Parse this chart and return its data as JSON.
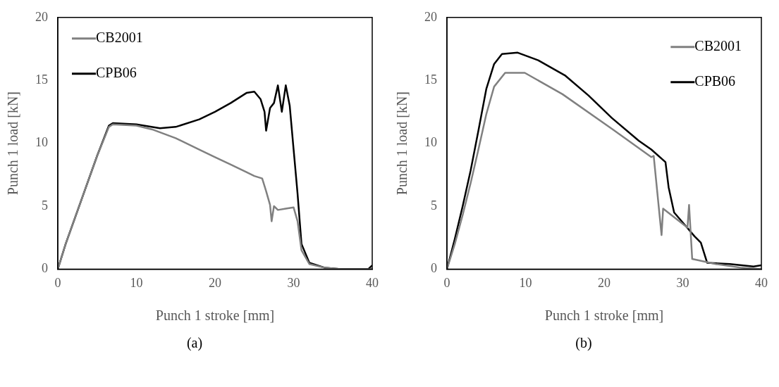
{
  "chart_data": [
    {
      "type": "line",
      "xlabel": "Punch 1 stroke [mm]",
      "ylabel": "Punch 1 load [kN]",
      "xlim": [
        0,
        40
      ],
      "xticks": [
        0,
        10,
        20,
        30,
        40
      ],
      "ylim": [
        0,
        20
      ],
      "yticks": [
        0,
        5,
        10,
        15,
        20
      ],
      "legend": "top left",
      "marker": "none",
      "annotations": [
        "(a)"
      ],
      "series": [
        {
          "name": "CB2001",
          "color": "#808080",
          "x": [
            0,
            1,
            3,
            5,
            6.5,
            7,
            10,
            12,
            15,
            18,
            20,
            22,
            24,
            25,
            26,
            26.5,
            27,
            27.2,
            27.5,
            28,
            29,
            30,
            30.5,
            31,
            32,
            34,
            36,
            40
          ],
          "values": [
            0,
            2,
            5.5,
            9,
            11.3,
            11.5,
            11.4,
            11.1,
            10.4,
            9.5,
            8.9,
            8.3,
            7.7,
            7.4,
            7.2,
            6.2,
            5.1,
            3.8,
            5,
            4.7,
            4.8,
            4.9,
            3.8,
            1.5,
            0.4,
            0.1,
            0,
            0
          ]
        },
        {
          "name": "CPB06",
          "color": "#000000",
          "x": [
            0,
            1,
            3,
            5,
            6.5,
            7,
            10,
            13,
            15,
            18,
            20,
            22,
            24,
            25,
            25.8,
            26.3,
            26.5,
            27,
            27.5,
            28,
            28.5,
            29,
            29.5,
            30,
            30.5,
            31,
            32,
            34,
            36,
            39.5,
            40
          ],
          "values": [
            0,
            2,
            5.5,
            9,
            11.4,
            11.6,
            11.5,
            11.2,
            11.3,
            11.9,
            12.5,
            13.2,
            14,
            14.1,
            13.5,
            12.5,
            11,
            12.8,
            13.2,
            14.6,
            12.5,
            14.6,
            13,
            9.5,
            6,
            2,
            0.5,
            0.1,
            0,
            0,
            0.3
          ]
        }
      ]
    },
    {
      "type": "line",
      "xlabel": "Punch 1 stroke [mm]",
      "ylabel": "Punch 1 load [kN]",
      "xlim": [
        0,
        40
      ],
      "xticks": [
        0,
        10,
        20,
        30,
        40
      ],
      "ylim": [
        0,
        20
      ],
      "yticks": [
        0,
        5,
        10,
        15,
        20
      ],
      "legend": "top right",
      "marker": "none",
      "annotations": [
        "(b)"
      ],
      "series": [
        {
          "name": "CB2001",
          "color": "#808080",
          "x": [
            0,
            1,
            2,
            3,
            4,
            5,
            6,
            7.4,
            9.9,
            14.7,
            21.1,
            26,
            26.3,
            27.3,
            27.5,
            30.6,
            30.8,
            31.2,
            34.2,
            37.5,
            40
          ],
          "values": [
            0,
            2,
            4.3,
            6.8,
            9.5,
            12.3,
            14.5,
            15.6,
            15.6,
            13.9,
            11.1,
            8.9,
            9,
            2.7,
            4.8,
            3.3,
            5.1,
            0.8,
            0.4,
            0.1,
            0
          ]
        },
        {
          "name": "CPB06",
          "color": "#000000",
          "x": [
            0,
            1,
            2,
            3,
            4,
            5,
            6,
            7,
            9,
            11.6,
            15,
            18,
            21,
            24.4,
            26,
            27.8,
            28.2,
            28.9,
            30,
            31.5,
            32.3,
            33.1,
            36,
            39,
            40
          ],
          "values": [
            0,
            2.4,
            5,
            7.8,
            11,
            14.3,
            16.3,
            17.1,
            17.2,
            16.6,
            15.4,
            13.8,
            12,
            10.2,
            9.5,
            8.5,
            6.5,
            4.5,
            3.7,
            2.6,
            2.1,
            0.5,
            0.4,
            0.2,
            0.3
          ]
        }
      ]
    }
  ]
}
